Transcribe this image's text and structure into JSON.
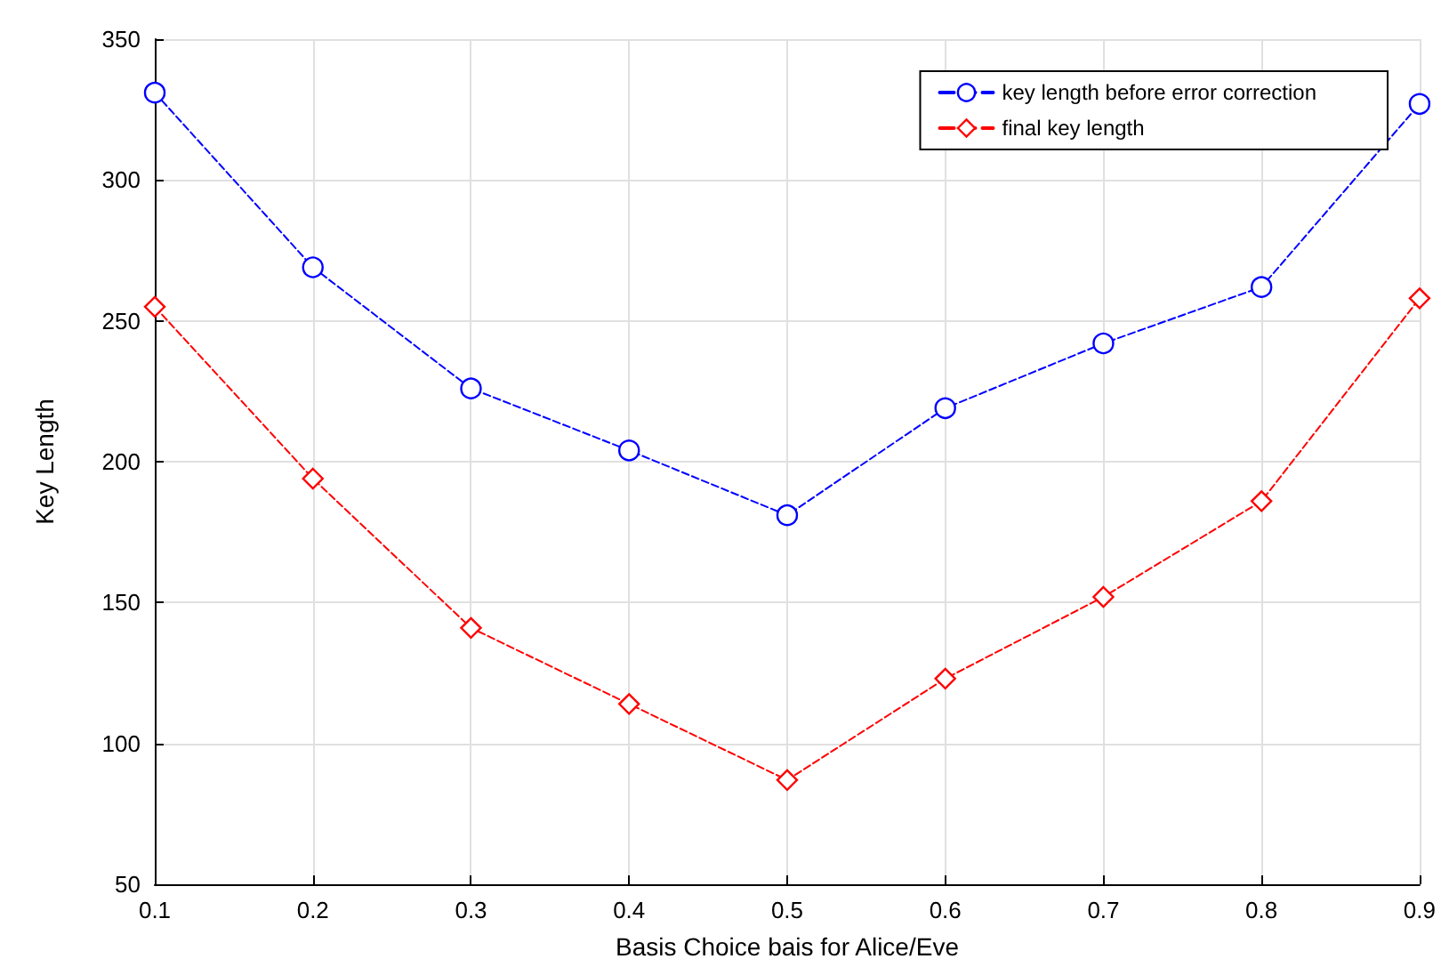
{
  "chart_data": {
    "type": "line",
    "xlabel": "Basis Choice bais for Alice/Eve",
    "ylabel": "Key Length",
    "x": [
      0.1,
      0.2,
      0.3,
      0.4,
      0.5,
      0.6,
      0.7,
      0.8,
      0.9
    ],
    "series": [
      {
        "name": "key length before error correction",
        "color": "#0000ff",
        "marker": "circle",
        "values": [
          331,
          269,
          226,
          204,
          181,
          219,
          242,
          262,
          327
        ]
      },
      {
        "name": "final key length",
        "color": "#ff0000",
        "marker": "diamond",
        "values": [
          255,
          194,
          141,
          114,
          87,
          123,
          152,
          186,
          258
        ]
      }
    ],
    "xlim": [
      0.1,
      0.9
    ],
    "xticks": [
      0.1,
      0.2,
      0.3,
      0.4,
      0.5,
      0.6,
      0.7,
      0.8,
      0.9
    ],
    "ylim": [
      50,
      350
    ],
    "yticks": [
      50,
      100,
      150,
      200,
      250,
      300,
      350
    ],
    "grid": true,
    "legend": "top right",
    "line_style": "dashed"
  }
}
